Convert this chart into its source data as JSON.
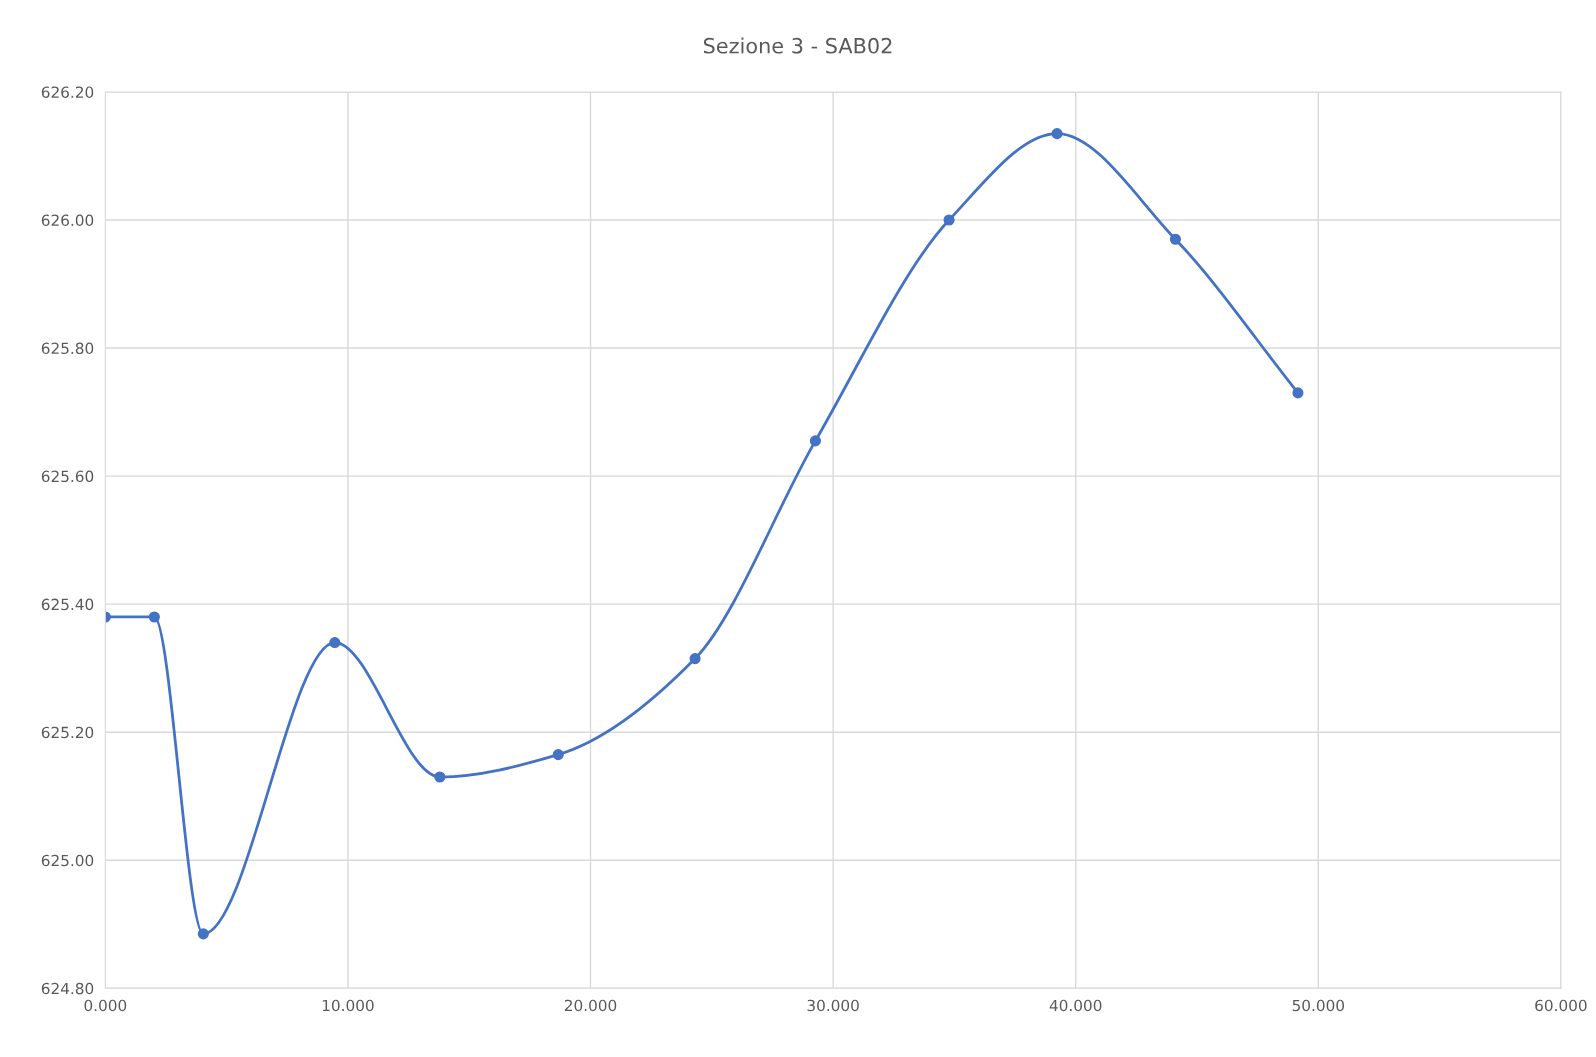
{
  "chart_data": {
    "type": "line",
    "title": "Sezione 3 - SAB02",
    "series": [
      {
        "color": "#4472c4",
        "x": [
          0,
          2.02,
          4.04,
          9.46,
          13.79,
          18.67,
          24.31,
          29.27,
          34.78,
          39.23,
          44.11,
          49.16
        ],
        "values": [
          625.38,
          625.38,
          624.885,
          625.34,
          625.13,
          625.165,
          625.315,
          625.655,
          626.0,
          626.135,
          625.97,
          625.73
        ]
      }
    ],
    "xlim": [
      0,
      60
    ],
    "xticks": [
      {
        "value": 0,
        "label": "0.000"
      },
      {
        "value": 10,
        "label": "10.000"
      },
      {
        "value": 20,
        "label": "20.000"
      },
      {
        "value": 30,
        "label": "30.000"
      },
      {
        "value": 40,
        "label": "40.000"
      },
      {
        "value": 50,
        "label": "50.000"
      },
      {
        "value": 60,
        "label": "60.000"
      }
    ],
    "ylim": [
      624.8,
      626.2
    ],
    "yticks": [
      {
        "value": 624.8,
        "label": "624.80"
      },
      {
        "value": 625.0,
        "label": "625.00"
      },
      {
        "value": 625.2,
        "label": "625.20"
      },
      {
        "value": 625.4,
        "label": "625.40"
      },
      {
        "value": 625.6,
        "label": "625.60"
      },
      {
        "value": 625.8,
        "label": "625.80"
      },
      {
        "value": 626.0,
        "label": "626.00"
      },
      {
        "value": 626.2,
        "label": "626.20"
      }
    ],
    "grid": true,
    "marker": "circle",
    "line_style": "solid",
    "legend": false
  }
}
